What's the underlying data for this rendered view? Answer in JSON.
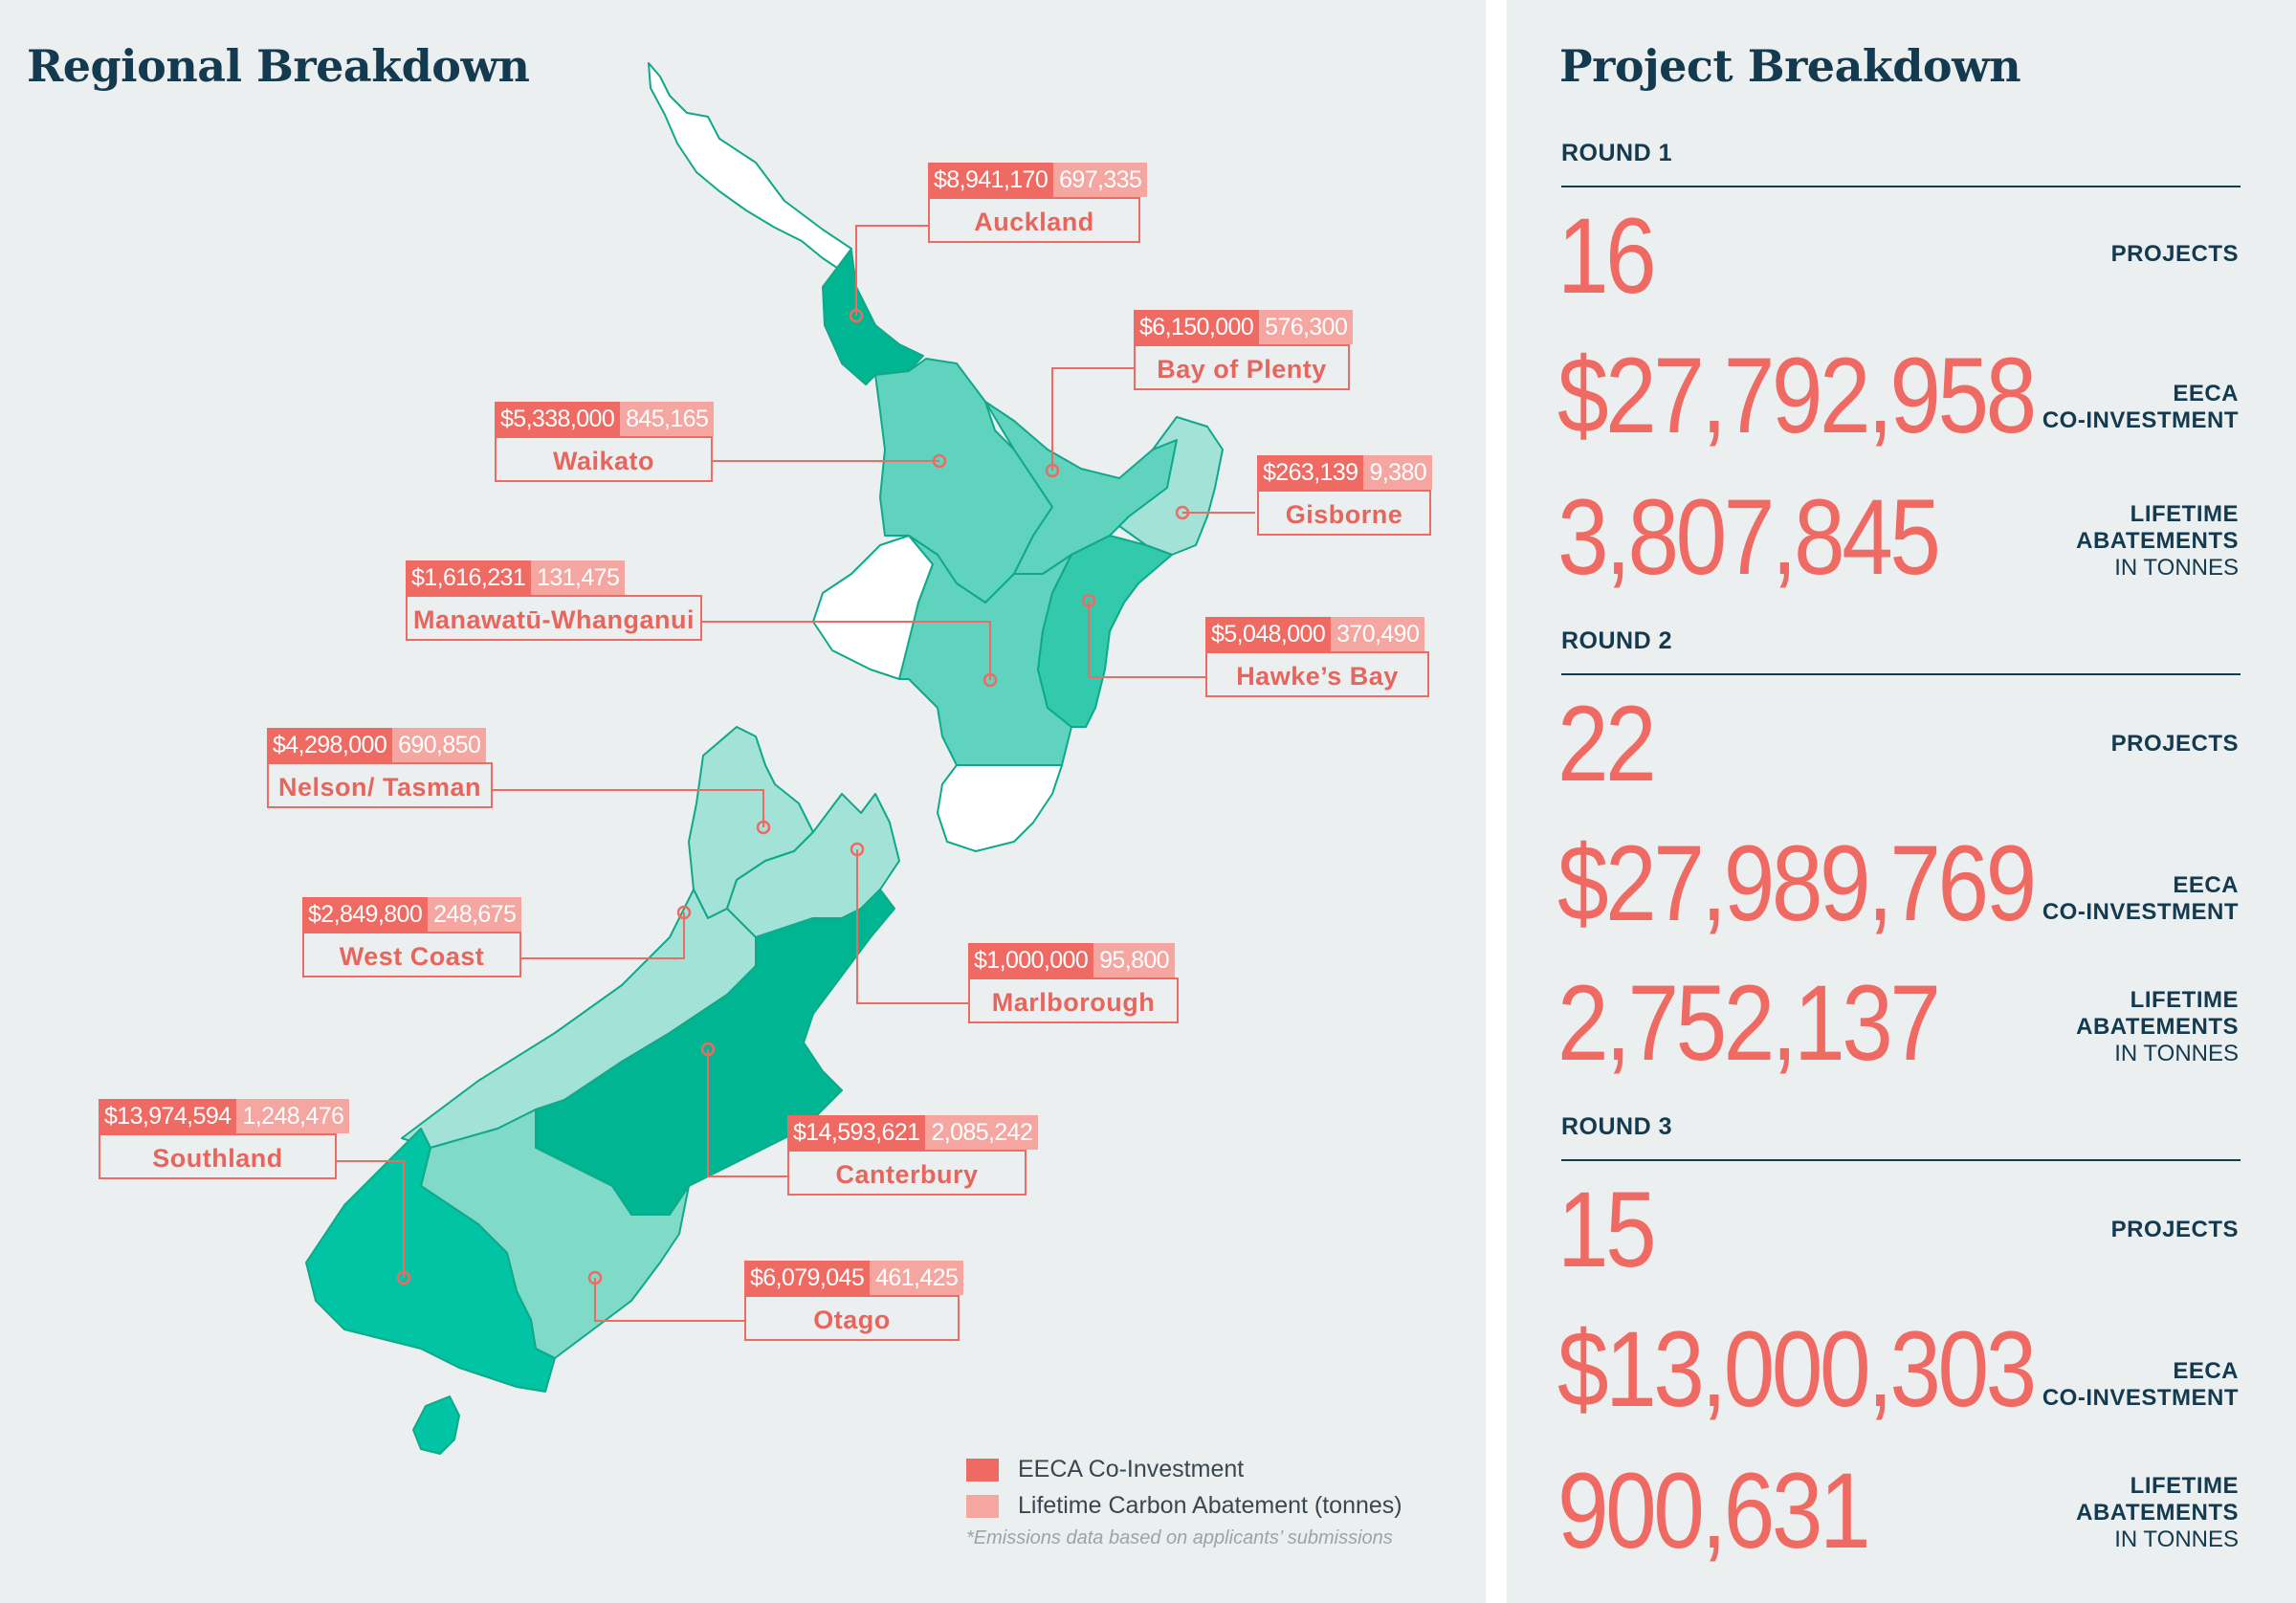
{
  "regional": {
    "title": "Regional Breakdown",
    "regions": [
      {
        "name": "Auckland",
        "investment": "$8,941,170",
        "abatement": "697,335"
      },
      {
        "name": "Bay of Plenty",
        "investment": "$6,150,000",
        "abatement": "576,300"
      },
      {
        "name": "Waikato",
        "investment": "$5,338,000",
        "abatement": "845,165"
      },
      {
        "name": "Gisborne",
        "investment": "$263,139",
        "abatement": "9,380"
      },
      {
        "name": "Manawatū-Whanganui",
        "investment": "$1,616,231",
        "abatement": "131,475"
      },
      {
        "name": "Hawke’s Bay",
        "investment": "$5,048,000",
        "abatement": "370,490"
      },
      {
        "name": "Nelson/ Tasman",
        "investment": "$4,298,000",
        "abatement": "690,850"
      },
      {
        "name": "West Coast",
        "investment": "$2,849,800",
        "abatement": "248,675"
      },
      {
        "name": "Marlborough",
        "investment": "$1,000,000",
        "abatement": "95,800"
      },
      {
        "name": "Southland",
        "investment": "$13,974,594",
        "abatement": "1,248,476"
      },
      {
        "name": "Canterbury",
        "investment": "$14,593,621",
        "abatement": "2,085,242"
      },
      {
        "name": "Otago",
        "investment": "$6,079,045",
        "abatement": "461,425"
      }
    ],
    "legend": {
      "investment": "EECA Co-Investment",
      "abatement": "Lifetime Carbon Abatement (tonnes)",
      "note": "*Emissions data based on applicants’ submissions"
    },
    "colors": {
      "investment": "#ef6a63",
      "abatement": "#f5a6a0",
      "map_darkest": "#00b592",
      "map_dark": "#00c4a4",
      "map_mid": "#5fd3bd",
      "map_light": "#a3e2d6",
      "map_none": "#ffffff"
    }
  },
  "project": {
    "title": "Project Breakdown",
    "rounds": [
      {
        "title": "ROUND 1",
        "projects": "16",
        "investment": "$27,792,958",
        "abatements": "3,807,845"
      },
      {
        "title": "ROUND 2",
        "projects": "22",
        "investment": "$27,989,769",
        "abatements": "2,752,137"
      },
      {
        "title": "ROUND 3",
        "projects": "15",
        "investment": "$13,000,303",
        "abatements": "900,631"
      }
    ],
    "labels": {
      "projects": "PROJECTS",
      "eeca": "EECA",
      "co_investment": "CO-INVESTMENT",
      "lifetime": "LIFETIME",
      "abatements": "ABATEMENTS",
      "in_tonnes": "IN TONNES"
    }
  }
}
